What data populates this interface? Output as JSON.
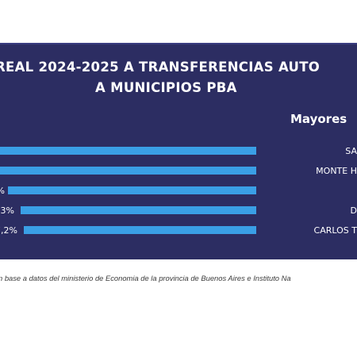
{
  "header": {
    "title_line1": "REAL 2024-2025 A TRANSFERENCIAS AUTO",
    "title_line2": "A MUNICIPIOS PBA",
    "right_header": "Mayores "
  },
  "chart_data": {
    "type": "bar",
    "orientation": "horizontal",
    "categories": [
      "SA",
      "MONTE H",
      "",
      "D",
      "CARLOS T"
    ],
    "series": [
      {
        "values": [
          null,
          null,
          null,
          null,
          -7.2
        ],
        "data_labels": [
          "",
          "",
          "%",
          "3%",
          "7,2%"
        ]
      }
    ],
    "colors": {
      "bar": "#3a9fe6",
      "panel": "#2c2d62",
      "text": "#ffffff"
    }
  },
  "footer": {
    "source": "n base a datos del ministerio de Economia de la provincia de Buenos Aires e Instituto Na"
  }
}
